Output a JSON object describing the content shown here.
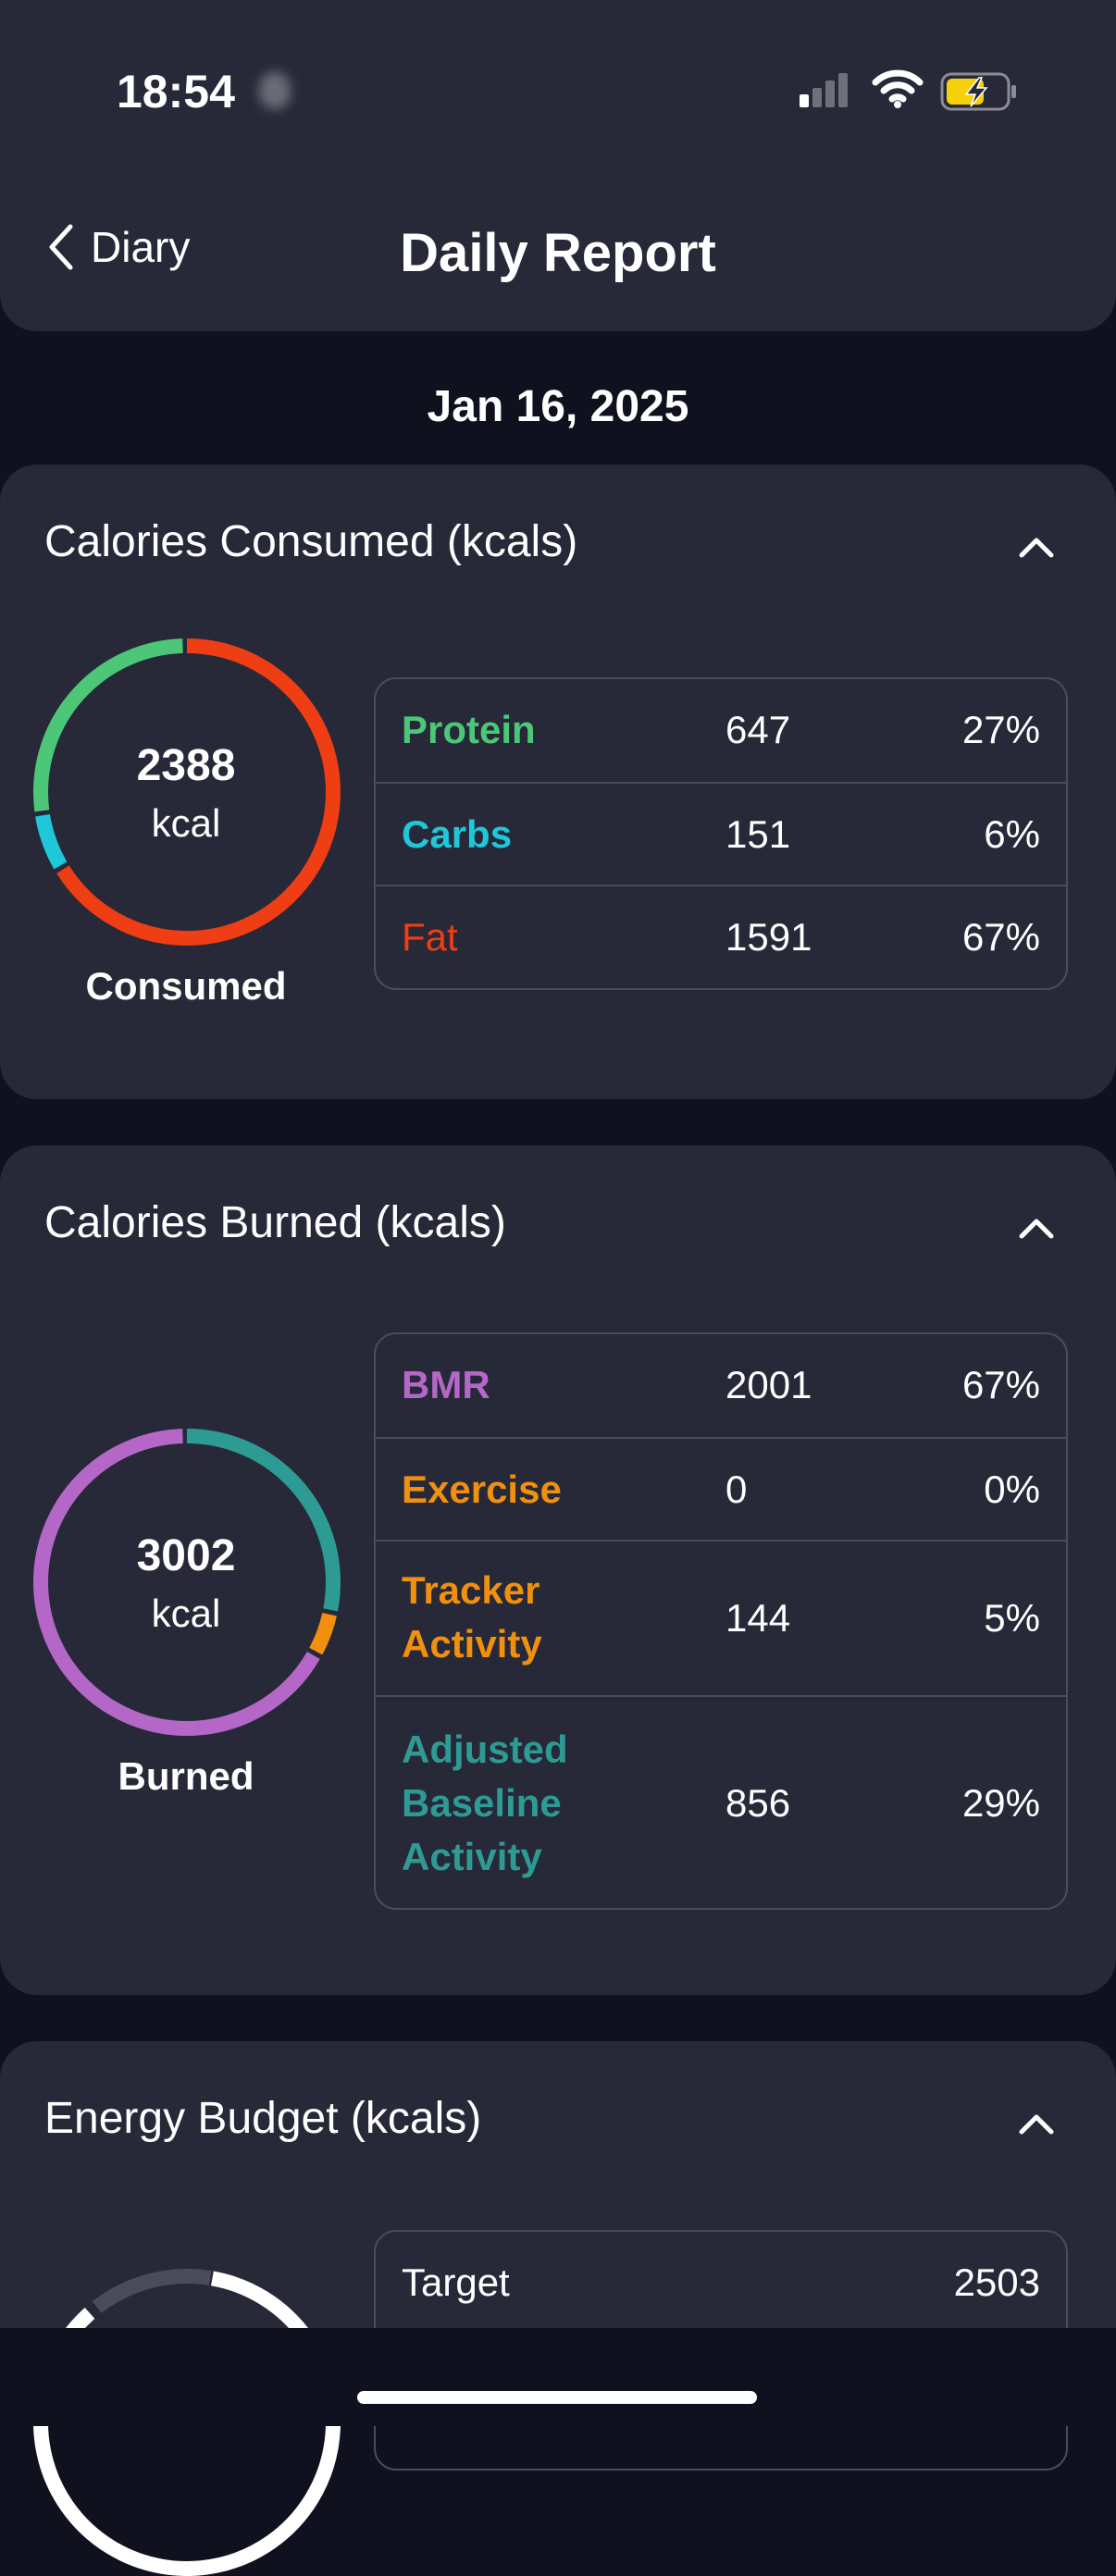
{
  "status_bar": {
    "time": "18:54"
  },
  "nav": {
    "back_label": "Diary",
    "title": "Daily Report"
  },
  "date": "Jan 16, 2025",
  "consumed": {
    "title": "Calories Consumed (kcals)",
    "total": "2388",
    "unit": "kcal",
    "caption": "Consumed",
    "rows": [
      {
        "name": "Protein",
        "value": "647",
        "pct": "27%",
        "color": "#4cc777"
      },
      {
        "name": "Carbs",
        "value": "151",
        "pct": "6%",
        "color": "#1ec8d8"
      },
      {
        "name": "Fat",
        "value": "1591",
        "pct": "67%",
        "color": "#ef3d14"
      }
    ]
  },
  "burned": {
    "title": "Calories Burned (kcals)",
    "total": "3002",
    "unit": "kcal",
    "caption": "Burned",
    "rows": [
      {
        "name": "BMR",
        "value": "2001",
        "pct": "67%",
        "color": "#b567c8"
      },
      {
        "name": "Exercise",
        "value": "0",
        "pct": "0%",
        "color": "#f0900e"
      },
      {
        "name": "Tracker Activity",
        "value": "144",
        "pct": "5%",
        "color": "#f0900e"
      },
      {
        "name": "Adjusted Baseline Activity",
        "value": "856",
        "pct": "29%",
        "color": "#2e9a94"
      }
    ]
  },
  "budget": {
    "title": "Energy Budget (kcals)",
    "rows": [
      {
        "name": "Target",
        "value": "2503"
      }
    ]
  }
}
